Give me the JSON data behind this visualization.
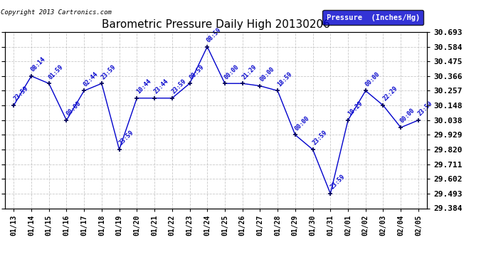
{
  "title": "Barometric Pressure Daily High 20130206",
  "copyright": "Copyright 2013 Cartronics.com",
  "legend_label": "Pressure  (Inches/Hg)",
  "xlabel_dates": [
    "01/13",
    "01/14",
    "01/15",
    "01/16",
    "01/17",
    "01/18",
    "01/19",
    "01/20",
    "01/21",
    "01/22",
    "01/23",
    "01/24",
    "01/25",
    "01/26",
    "01/27",
    "01/28",
    "01/29",
    "01/30",
    "01/31",
    "02/01",
    "02/02",
    "02/03",
    "02/04",
    "02/05"
  ],
  "x_indices": [
    0,
    1,
    2,
    3,
    4,
    5,
    6,
    7,
    8,
    9,
    10,
    11,
    12,
    13,
    14,
    15,
    16,
    17,
    18,
    19,
    20,
    21,
    22,
    23
  ],
  "y_values": [
    30.148,
    30.366,
    30.311,
    30.038,
    30.257,
    30.311,
    29.82,
    30.202,
    30.202,
    30.202,
    30.311,
    30.584,
    30.311,
    30.311,
    30.293,
    30.257,
    29.929,
    29.82,
    29.493,
    30.038,
    30.257,
    30.148,
    29.984,
    30.038
  ],
  "annotations": [
    "23:59",
    "08:14",
    "01:59",
    "00:00",
    "02:44",
    "23:59",
    "23:59",
    "10:44",
    "23:44",
    "23:59",
    "08:59",
    "08:59",
    "00:00",
    "21:29",
    "00:00",
    "18:59",
    "00:00",
    "23:59",
    "23:59",
    "10:29",
    "00:00",
    "22:29",
    "00:00",
    "23:59"
  ],
  "ylim_min": 29.384,
  "ylim_max": 30.693,
  "yticks": [
    29.384,
    29.493,
    29.602,
    29.711,
    29.82,
    29.929,
    30.038,
    30.148,
    30.257,
    30.366,
    30.475,
    30.584,
    30.693
  ],
  "line_color": "#0000cc",
  "marker_color": "#000055",
  "bg_color": "#ffffff",
  "grid_color": "#bbbbbb",
  "title_color": "#000000",
  "label_color": "#0000cc",
  "legend_bg": "#0000cc",
  "legend_text_color": "#ffffff"
}
